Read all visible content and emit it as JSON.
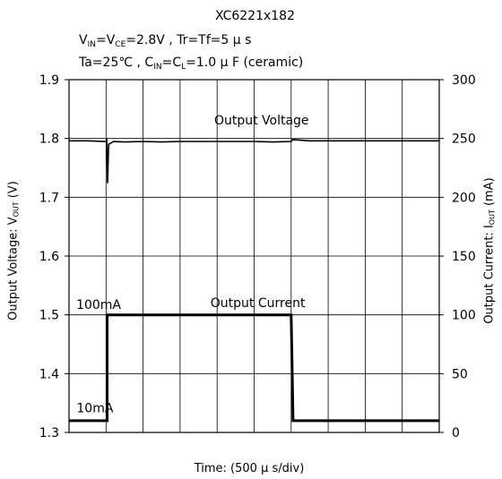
{
  "header": {
    "line1": "XC6221x182",
    "line2_parts": [
      "V",
      "IN",
      "=V",
      "CE",
      "=2.8V , Tr=Tf=5 μ s"
    ],
    "line3_parts": [
      "Ta=25℃ , C",
      "IN",
      "=C",
      "L",
      "=1.0 μ F (ceramic)"
    ]
  },
  "axis_labels": {
    "left_parts": [
      "Output Voltage: V",
      "OUT",
      " (V)"
    ],
    "right_parts": [
      "Output Current: I",
      "OUT",
      " (mA)"
    ],
    "x": "Time: (500 μ s/div)"
  },
  "chart_data": {
    "type": "line",
    "title": "XC6221x182",
    "xlabel": "Time: (500 μ s/div)",
    "x_divisions": 10,
    "x_unit": "div (500 μs/div)",
    "grid": true,
    "y_left": {
      "label": "Output Voltage: VOUT (V)",
      "range": [
        1.3,
        1.9
      ],
      "ticks": [
        "1.3",
        "1.4",
        "1.5",
        "1.6",
        "1.7",
        "1.8",
        "1.9"
      ]
    },
    "y_right": {
      "label": "Output Current: IOUT (mA)",
      "range": [
        0,
        300
      ],
      "ticks": [
        "0",
        "50",
        "100",
        "150",
        "200",
        "250",
        "300"
      ]
    },
    "series": [
      {
        "name": "Output Voltage",
        "axis": "left",
        "points": [
          [
            0,
            1.796
          ],
          [
            0.5,
            1.796
          ],
          [
            1.0,
            1.795
          ],
          [
            1.02,
            1.797
          ],
          [
            1.04,
            1.724
          ],
          [
            1.07,
            1.79
          ],
          [
            1.2,
            1.795
          ],
          [
            1.5,
            1.794
          ],
          [
            2.0,
            1.795
          ],
          [
            2.5,
            1.794
          ],
          [
            3.0,
            1.795
          ],
          [
            3.5,
            1.795
          ],
          [
            4.0,
            1.795
          ],
          [
            4.5,
            1.795
          ],
          [
            5.0,
            1.795
          ],
          [
            5.5,
            1.794
          ],
          [
            6.0,
            1.795
          ],
          [
            6.04,
            1.798
          ],
          [
            6.5,
            1.796
          ],
          [
            7.0,
            1.796
          ],
          [
            8.0,
            1.796
          ],
          [
            9.0,
            1.796
          ],
          [
            10.0,
            1.796
          ]
        ]
      },
      {
        "name": "Output Current",
        "axis": "right",
        "points": [
          [
            0,
            10
          ],
          [
            1.03,
            10
          ],
          [
            1.03,
            100
          ],
          [
            6.0,
            100
          ],
          [
            6.03,
            50
          ],
          [
            6.05,
            10
          ],
          [
            10.0,
            10
          ]
        ]
      }
    ],
    "annotations": [
      {
        "text": "Output Voltage",
        "x": 5.2,
        "y": 1.824,
        "axis": "left"
      },
      {
        "text": "Output Current",
        "x": 5.1,
        "y": 1.513,
        "axis": "left"
      },
      {
        "text": "100mA",
        "x": 0.8,
        "y": 1.51,
        "axis": "left"
      },
      {
        "text": "10mA",
        "x": 0.7,
        "y": 1.334,
        "axis": "left"
      }
    ]
  }
}
